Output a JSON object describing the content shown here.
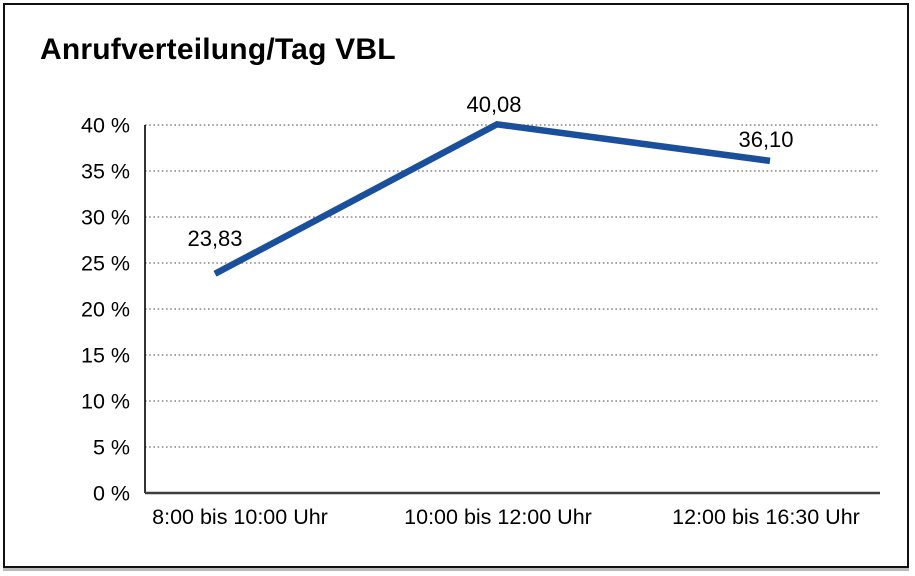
{
  "chart_data": {
    "type": "line",
    "title": "Anrufverteilung/Tag VBL",
    "categories": [
      "8:00 bis 10:00 Uhr",
      "10:00 bis 12:00 Uhr",
      "12:00 bis 16:30 Uhr"
    ],
    "series": [
      {
        "name": "Anrufverteilung",
        "values": [
          23.83,
          40.08,
          36.1
        ],
        "value_labels": [
          "23,83",
          "40,08",
          "36,10"
        ]
      }
    ],
    "xlabel": "",
    "ylabel": "",
    "ylim": [
      0,
      40
    ],
    "y_tick_step": 5,
    "y_tick_labels": [
      "0 %",
      "5 %",
      "10 %",
      "15 %",
      "20 %",
      "25 %",
      "30 %",
      "35 %",
      "40 %"
    ],
    "grid": "horizontal-dotted",
    "legend_position": "none",
    "colors": {
      "line": "#1a4f9c",
      "grid": "#6e6e6e",
      "y_axis": "#000000",
      "x_axis": "#3d3d3d",
      "text": "#000000",
      "frame_border": "#101010",
      "background": "#ffffff"
    }
  }
}
